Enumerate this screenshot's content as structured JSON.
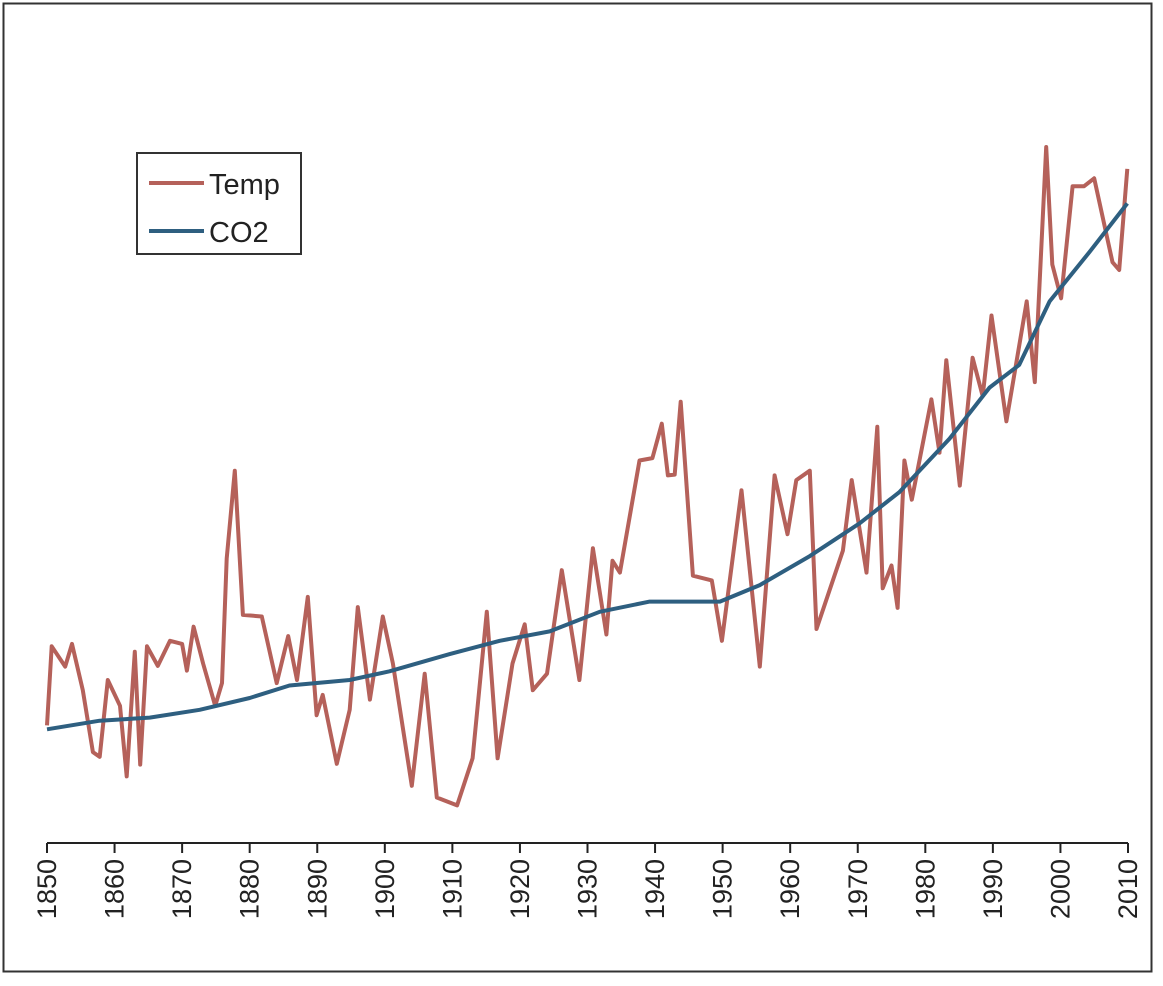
{
  "chart_data": {
    "type": "line",
    "title": "",
    "xlabel": "",
    "ylabel": "",
    "xlim": [
      1850,
      2010
    ],
    "ylim": [
      0,
      105
    ],
    "grid": false,
    "legend_position": "top-left",
    "x_ticks": [
      "1850",
      "1860",
      "1870",
      "1880",
      "1890",
      "1900",
      "1910",
      "1920",
      "1930",
      "1940",
      "1950",
      "1960",
      "1970",
      "1980",
      "1990",
      "2000",
      "2010"
    ],
    "legend": [
      "Temp",
      "CO2"
    ],
    "series": [
      {
        "name": "Temp",
        "color": "#b5615a",
        "points": [
          [
            1850.0,
            15.0
          ],
          [
            1850.7,
            25.1
          ],
          [
            1852.7,
            22.5
          ],
          [
            1853.7,
            25.4
          ],
          [
            1855.3,
            19.5
          ],
          [
            1856.8,
            11.6
          ],
          [
            1857.8,
            11.0
          ],
          [
            1859.0,
            20.8
          ],
          [
            1860.8,
            17.5
          ],
          [
            1861.8,
            8.5
          ],
          [
            1863.0,
            24.4
          ],
          [
            1863.8,
            10.0
          ],
          [
            1864.8,
            25.1
          ],
          [
            1866.4,
            22.6
          ],
          [
            1868.2,
            25.8
          ],
          [
            1870.0,
            25.4
          ],
          [
            1870.7,
            22.0
          ],
          [
            1871.7,
            27.6
          ],
          [
            1873.1,
            22.9
          ],
          [
            1874.9,
            17.5
          ],
          [
            1875.9,
            20.4
          ],
          [
            1876.6,
            36.3
          ],
          [
            1877.8,
            47.5
          ],
          [
            1879.0,
            29.1
          ],
          [
            1881.8,
            28.9
          ],
          [
            1884.0,
            20.4
          ],
          [
            1885.7,
            26.4
          ],
          [
            1887.0,
            20.8
          ],
          [
            1888.6,
            31.4
          ],
          [
            1889.9,
            16.3
          ],
          [
            1890.8,
            18.9
          ],
          [
            1892.9,
            10.1
          ],
          [
            1894.8,
            17.0
          ],
          [
            1896.0,
            30.1
          ],
          [
            1897.8,
            18.3
          ],
          [
            1899.7,
            28.9
          ],
          [
            1901.2,
            22.9
          ],
          [
            1904.0,
            7.3
          ],
          [
            1905.9,
            21.6
          ],
          [
            1907.7,
            5.8
          ],
          [
            1910.7,
            4.8
          ],
          [
            1913.0,
            10.8
          ],
          [
            1915.1,
            29.5
          ],
          [
            1916.7,
            10.8
          ],
          [
            1918.9,
            22.9
          ],
          [
            1920.7,
            27.9
          ],
          [
            1921.9,
            19.5
          ],
          [
            1924.0,
            21.6
          ],
          [
            1926.2,
            34.8
          ],
          [
            1928.8,
            20.8
          ],
          [
            1930.8,
            37.6
          ],
          [
            1932.8,
            26.6
          ],
          [
            1933.7,
            36.0
          ],
          [
            1934.8,
            34.5
          ],
          [
            1937.7,
            48.8
          ],
          [
            1939.6,
            49.1
          ],
          [
            1941.0,
            53.5
          ],
          [
            1941.9,
            46.9
          ],
          [
            1942.9,
            47.0
          ],
          [
            1943.8,
            56.3
          ],
          [
            1945.6,
            34.1
          ],
          [
            1948.4,
            33.5
          ],
          [
            1949.9,
            25.8
          ],
          [
            1952.8,
            45.0
          ],
          [
            1955.5,
            22.5
          ],
          [
            1957.7,
            46.9
          ],
          [
            1959.6,
            39.4
          ],
          [
            1960.9,
            46.3
          ],
          [
            1962.9,
            47.5
          ],
          [
            1963.9,
            27.3
          ],
          [
            1967.8,
            37.3
          ],
          [
            1969.1,
            46.3
          ],
          [
            1971.3,
            34.5
          ],
          [
            1972.9,
            53.1
          ],
          [
            1973.7,
            32.5
          ],
          [
            1975.0,
            35.4
          ],
          [
            1975.9,
            30.0
          ],
          [
            1976.9,
            48.8
          ],
          [
            1978.0,
            43.8
          ],
          [
            1980.9,
            56.6
          ],
          [
            1982.1,
            49.8
          ],
          [
            1983.1,
            61.6
          ],
          [
            1985.1,
            45.6
          ],
          [
            1987.0,
            61.9
          ],
          [
            1988.5,
            57.0
          ],
          [
            1989.8,
            67.3
          ],
          [
            1992.0,
            53.8
          ],
          [
            1995.0,
            69.1
          ],
          [
            1996.2,
            58.8
          ],
          [
            1997.9,
            88.8
          ],
          [
            1998.8,
            73.8
          ],
          [
            2000.1,
            69.5
          ],
          [
            2001.8,
            83.8
          ],
          [
            2003.5,
            83.8
          ],
          [
            2005.0,
            84.8
          ],
          [
            2007.7,
            74.1
          ],
          [
            2008.7,
            73.1
          ],
          [
            2009.9,
            86.0
          ]
        ]
      },
      {
        "name": "CO2",
        "color": "#2e5f80",
        "points": [
          [
            1850,
            14.5
          ],
          [
            1857.8,
            15.6
          ],
          [
            1865.2,
            16.0
          ],
          [
            1872.6,
            17.0
          ],
          [
            1880.0,
            18.5
          ],
          [
            1885.9,
            20.1
          ],
          [
            1894.8,
            20.8
          ],
          [
            1900.7,
            21.9
          ],
          [
            1909.6,
            24.1
          ],
          [
            1917.0,
            25.8
          ],
          [
            1924.4,
            27.0
          ],
          [
            1931.8,
            29.5
          ],
          [
            1939.2,
            30.8
          ],
          [
            1949.6,
            30.8
          ],
          [
            1955.5,
            32.9
          ],
          [
            1962.9,
            36.6
          ],
          [
            1970.3,
            40.8
          ],
          [
            1976.2,
            44.8
          ],
          [
            1983.6,
            51.6
          ],
          [
            1989.5,
            58.1
          ],
          [
            1993.9,
            61.0
          ],
          [
            1998.4,
            69.1
          ],
          [
            2004.3,
            75.4
          ],
          [
            2009.9,
            81.6
          ]
        ]
      }
    ]
  }
}
